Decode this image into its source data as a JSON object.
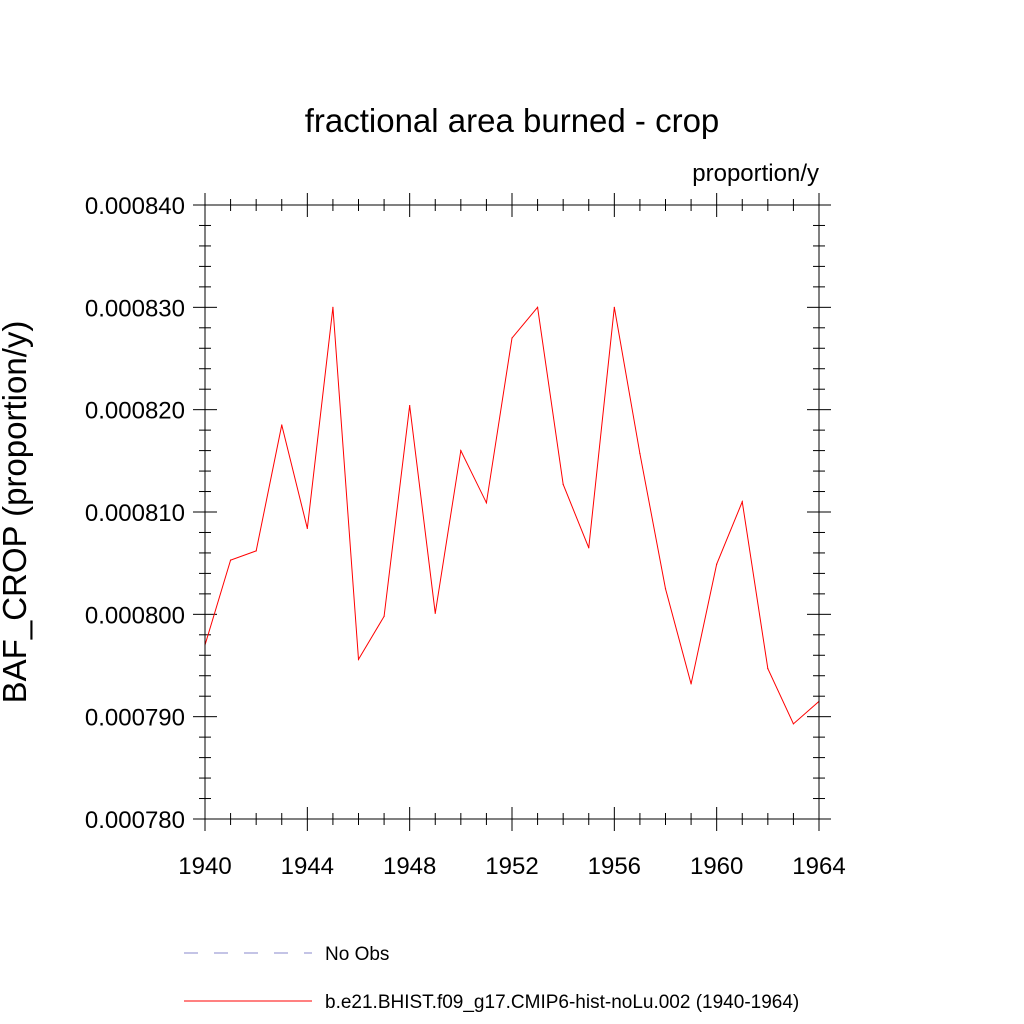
{
  "chart_data": {
    "type": "line",
    "title": "fractional area burned - crop",
    "units": "proportion/y",
    "ylabel": "BAF_CROP  (proportion/y)",
    "xlabel": "",
    "xlim": [
      1940,
      1964
    ],
    "ylim": [
      0.00078,
      0.00084
    ],
    "x_ticks": [
      1940,
      1944,
      1948,
      1952,
      1956,
      1960,
      1964
    ],
    "x_tick_labels": [
      "1940",
      "1944",
      "1948",
      "1952",
      "1956",
      "1960",
      "1964"
    ],
    "y_ticks": [
      0.00078,
      0.00079,
      0.0008,
      0.00081,
      0.00082,
      0.00083,
      0.00084
    ],
    "y_tick_labels": [
      "0.000780",
      "0.000790",
      "0.000800",
      "0.000810",
      "0.000820",
      "0.000830",
      "0.000840"
    ],
    "grid": false,
    "legend_position": "bottom",
    "series": [
      {
        "name": "No Obs",
        "color": "#8888cc",
        "dash": "dashed",
        "x": [],
        "y": []
      },
      {
        "name": "b.e21.BHIST.f09_g17.CMIP6-hist-noLu.002 (1940-1964)",
        "color": "#ff0000",
        "dash": "solid",
        "x": [
          1940,
          1941,
          1942,
          1943,
          1944,
          1945,
          1946,
          1947,
          1948,
          1949,
          1950,
          1951,
          1952,
          1953,
          1954,
          1955,
          1956,
          1957,
          1958,
          1959,
          1960,
          1961,
          1962,
          1963,
          1964
        ],
        "y": [
          0.000797,
          0.0008053,
          0.0008062,
          0.0008185,
          0.0008084,
          0.00083,
          0.0007956,
          0.0007998,
          0.0008204,
          0.0008001,
          0.000816,
          0.0008109,
          0.000827,
          0.00083,
          0.0008127,
          0.0008065,
          0.00083,
          0.0008157,
          0.0008025,
          0.0007932,
          0.0008049,
          0.000811,
          0.0007947,
          0.0007893,
          0.0007915
        ]
      }
    ]
  }
}
